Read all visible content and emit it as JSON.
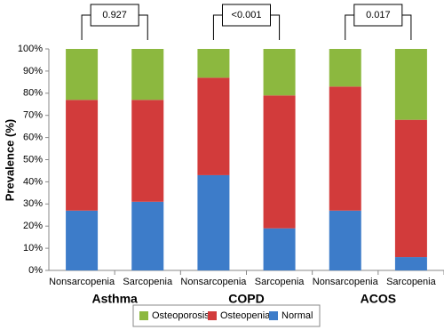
{
  "chart_data": {
    "type": "bar",
    "stacked": true,
    "y_label": "Prevalence (%)",
    "categories": [
      "Nonsarcopenia",
      "Sarcopenia",
      "Nonsarcopenia",
      "Sarcopenia",
      "Nonsarcopenia",
      "Sarcopenia"
    ],
    "groups": [
      "Asthma",
      "COPD",
      "ACOS"
    ],
    "annotations": [
      "0.927",
      "<0.001",
      "0.017"
    ],
    "series": [
      {
        "name": "Normal",
        "color": "#3d7cc9",
        "values": [
          27,
          31,
          43,
          19,
          27,
          6
        ]
      },
      {
        "name": "Osteopenia",
        "color": "#d23b3b",
        "values": [
          50,
          46,
          44,
          60,
          56,
          62
        ]
      },
      {
        "name": "Osteoporosis",
        "color": "#8cb83f",
        "values": [
          23,
          23,
          13,
          21,
          17,
          32
        ]
      }
    ],
    "ylim": [
      0,
      100
    ],
    "yticks": [
      {
        "value": 0,
        "label": "0%"
      },
      {
        "value": 10,
        "label": "10%"
      },
      {
        "value": 20,
        "label": "20%"
      },
      {
        "value": 30,
        "label": "30%"
      },
      {
        "value": 40,
        "label": "40%"
      },
      {
        "value": 50,
        "label": "50%"
      },
      {
        "value": 60,
        "label": "60%"
      },
      {
        "value": 70,
        "label": "70%"
      },
      {
        "value": 80,
        "label": "80%"
      },
      {
        "value": 90,
        "label": "90%"
      },
      {
        "value": 100,
        "label": "100%"
      }
    ]
  }
}
